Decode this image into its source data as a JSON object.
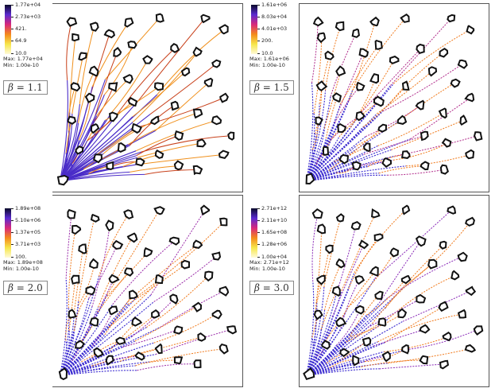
{
  "panels": [
    {
      "id": "p1",
      "colorbar": {
        "ticks": [
          "1.77e+04",
          "2.73e+03",
          "421.",
          "64.9",
          "10.0"
        ],
        "max_label": "Max:",
        "max_value": "1.77e+04",
        "min_label": "Min:",
        "min_value": "1.00e-10",
        "colors": [
          "#0a0a2a",
          "#5a2ad0",
          "#d8287a",
          "#f48a1c",
          "#f6e64a",
          "#fffad8"
        ]
      },
      "beta_symbol": "β",
      "beta_value": "1.1",
      "style": {
        "main": "#c8401a",
        "leaf": "#f0901c",
        "trunk": "#4a2cc8",
        "dashed": false
      }
    },
    {
      "id": "p2",
      "colorbar": {
        "ticks": [
          "1.61e+06",
          "8.03e+04",
          "4.01e+03",
          "200.",
          "10.0"
        ],
        "max_label": "Max:",
        "max_value": "1.61e+06",
        "min_label": "Min:",
        "min_value": "1.00e-10",
        "colors": [
          "#0a0a2a",
          "#5a2ad0",
          "#d8287a",
          "#f48a1c",
          "#f6e64a",
          "#fffad8"
        ]
      },
      "beta_symbol": "β",
      "beta_value": "1.5",
      "style": {
        "main": "#b02a8a",
        "leaf": "#f07a1c",
        "trunk": "#3a2ad0",
        "dashed": true
      }
    },
    {
      "id": "p3",
      "colorbar": {
        "ticks": [
          "1.89e+08",
          "5.10e+06",
          "1.37e+05",
          "3.71e+03",
          "100."
        ],
        "max_label": "Max:",
        "max_value": "1.89e+08",
        "min_label": "Min:",
        "min_value": "1.00e-10",
        "colors": [
          "#0a0a2a",
          "#5a2ad0",
          "#d8287a",
          "#f48a1c",
          "#f6e64a",
          "#fffad8"
        ]
      },
      "beta_symbol": "β",
      "beta_value": "2.0",
      "style": {
        "main": "#9a2aa8",
        "leaf": "#f07a1c",
        "trunk": "#3a2ad0",
        "dashed": true
      }
    },
    {
      "id": "p4",
      "colorbar": {
        "ticks": [
          "2.71e+12",
          "2.11e+10",
          "1.65e+08",
          "1.28e+06",
          "1.00e+04"
        ],
        "max_label": "Max:",
        "max_value": "2.71e+12",
        "min_label": "Min:",
        "min_value": "1.00e-10",
        "colors": [
          "#0a0a2a",
          "#5a2ad0",
          "#d8287a",
          "#f48a1c",
          "#f6e64a",
          "#fffad8"
        ]
      },
      "beta_symbol": "β",
      "beta_value": "3.0",
      "style": {
        "main": "#8a2ab8",
        "leaf": "#f07a1c",
        "trunk": "#3a2ad0",
        "dashed": true
      }
    }
  ]
}
